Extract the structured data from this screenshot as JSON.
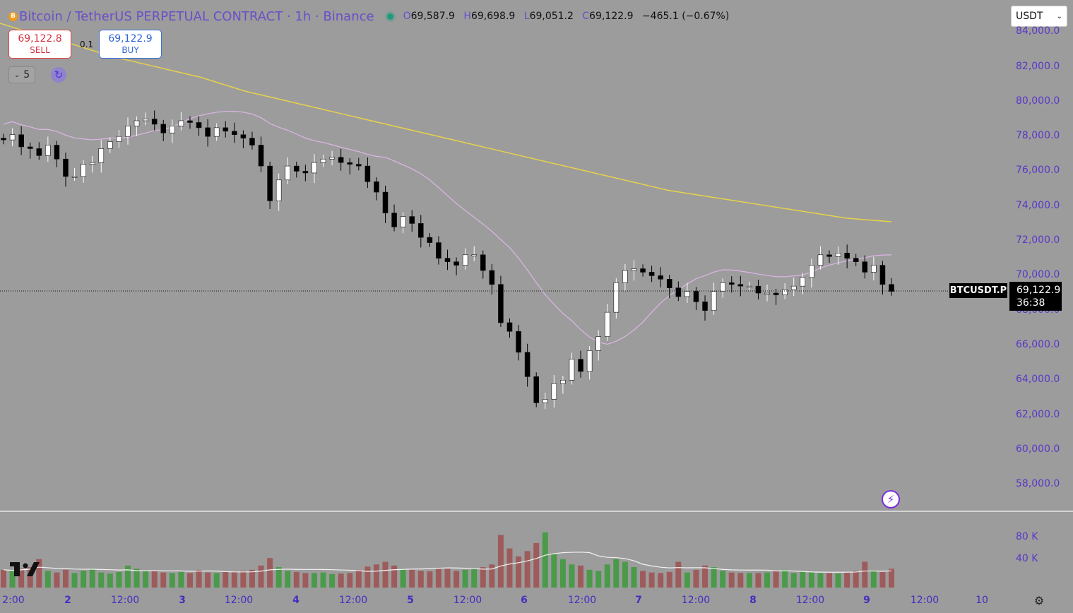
{
  "header": {
    "coin_icon": "B",
    "title": "Bitcoin / TetherUS PERPETUAL CONTRACT · 1h · Binance",
    "ohlc": {
      "o_label": "O",
      "o": "69,587.9",
      "h_label": "H",
      "h": "69,698.9",
      "l_label": "L",
      "l": "69,051.2",
      "c_label": "C",
      "c": "69,122.9",
      "change": "−465.1 (−0.67%)"
    }
  },
  "trade": {
    "sell_price": "69,122.8",
    "sell_label": "SELL",
    "buy_price": "69,122.9",
    "buy_label": "BUY",
    "quantity": "0.1"
  },
  "controls": {
    "interval_value": "5",
    "currency": "USDT",
    "currency_icon": "chevron-down-icon",
    "refresh_icon": "refresh-icon",
    "alert_icon": "lightning-icon",
    "settings_icon": "gear-icon"
  },
  "price_tag": {
    "symbol": "BTCUSDT.P",
    "price": "69,122.9",
    "countdown": "36:38"
  },
  "colors": {
    "background": "#9c9c9c",
    "up": "#ffffff",
    "down": "#000000",
    "ma_long": "#e8d24a",
    "ma_short": "#d8b4e0",
    "vol_up": "#4a9a4a",
    "vol_down": "#9e5b5b",
    "axis_text": "#5a37c9"
  },
  "chart_data": {
    "type": "candlestick",
    "ylim": [
      56000,
      84500
    ],
    "y_ticks": [
      "84,000.0",
      "82,000.0",
      "80,000.0",
      "78,000.0",
      "76,000.0",
      "74,000.0",
      "72,000.0",
      "70,000.0",
      "68,000.0",
      "66,000.0",
      "64,000.0",
      "62,000.0",
      "60,000.0",
      "58,000.0"
    ],
    "x_ticks": [
      "2:00",
      "2",
      "12:00",
      "3",
      "12:00",
      "4",
      "12:00",
      "5",
      "12:00",
      "6",
      "12:00",
      "7",
      "12:00",
      "8",
      "12:00",
      "9",
      "12:00",
      "10"
    ],
    "x_bold": [
      false,
      true,
      false,
      true,
      false,
      true,
      false,
      true,
      false,
      true,
      false,
      true,
      false,
      true,
      false,
      true,
      false,
      false
    ],
    "volume_ticks": [
      "80 K",
      "40 K"
    ],
    "volume_max": 95000,
    "close_series": [
      77800,
      78100,
      77400,
      77300,
      76900,
      77500,
      76700,
      75700,
      75700,
      76400,
      76500,
      77300,
      77700,
      78000,
      78600,
      78900,
      79000,
      78700,
      78200,
      78600,
      78900,
      78800,
      78500,
      78000,
      78500,
      78300,
      78100,
      77900,
      77500,
      76300,
      74300,
      75500,
      76300,
      76000,
      75900,
      76500,
      76700,
      76800,
      76500,
      76400,
      76300,
      75400,
      74800,
      73600,
      72800,
      73400,
      73000,
      72200,
      71900,
      71000,
      70800,
      70600,
      71200,
      71200,
      70300,
      69500,
      67300,
      66800,
      65600,
      64200,
      62700,
      62900,
      63800,
      64000,
      65200,
      64500,
      65700,
      66500,
      67900,
      69600,
      70300,
      70400,
      70200,
      70000,
      69800,
      69300,
      68800,
      69100,
      68500,
      68000,
      69100,
      69600,
      69500,
      69400,
      69400,
      69000,
      69000,
      68900,
      69200,
      69400,
      69900,
      70600,
      71200,
      71100,
      71300,
      71000,
      70800,
      70200,
      70600,
      69500,
      69100
    ],
    "volume_series": [
      20,
      18,
      22,
      25,
      40,
      18,
      15,
      20,
      14,
      18,
      22,
      15,
      13,
      16,
      28,
      22,
      18,
      18,
      15,
      14,
      16,
      14,
      20,
      15,
      14,
      16,
      17,
      18,
      20,
      28,
      42,
      25,
      18,
      16,
      14,
      14,
      15,
      12,
      13,
      14,
      20,
      26,
      30,
      35,
      28,
      22,
      20,
      18,
      17,
      22,
      22,
      18,
      20,
      22,
      25,
      30,
      85,
      60,
      45,
      55,
      70,
      90,
      50,
      40,
      30,
      28,
      20,
      18,
      30,
      40,
      35,
      25,
      18,
      15,
      14,
      16,
      35,
      15,
      20,
      28,
      25,
      18,
      15,
      14,
      14,
      14,
      15,
      18,
      20,
      14,
      18,
      16,
      14,
      14,
      13,
      15,
      18,
      35,
      18,
      16,
      22
    ],
    "ma_long_series": [
      84500,
      84100,
      83800,
      83400,
      83000,
      82600,
      82300,
      82000,
      81700,
      81400,
      81000,
      80600,
      80300,
      80000,
      79700,
      79400,
      79100,
      78800,
      78500,
      78200,
      77900,
      77600,
      77300,
      77000,
      76700,
      76400,
      76100,
      75800,
      75500,
      75200,
      74900,
      74700,
      74500,
      74300,
      74100,
      73900,
      73700,
      73500,
      73300,
      73200,
      73100
    ]
  }
}
